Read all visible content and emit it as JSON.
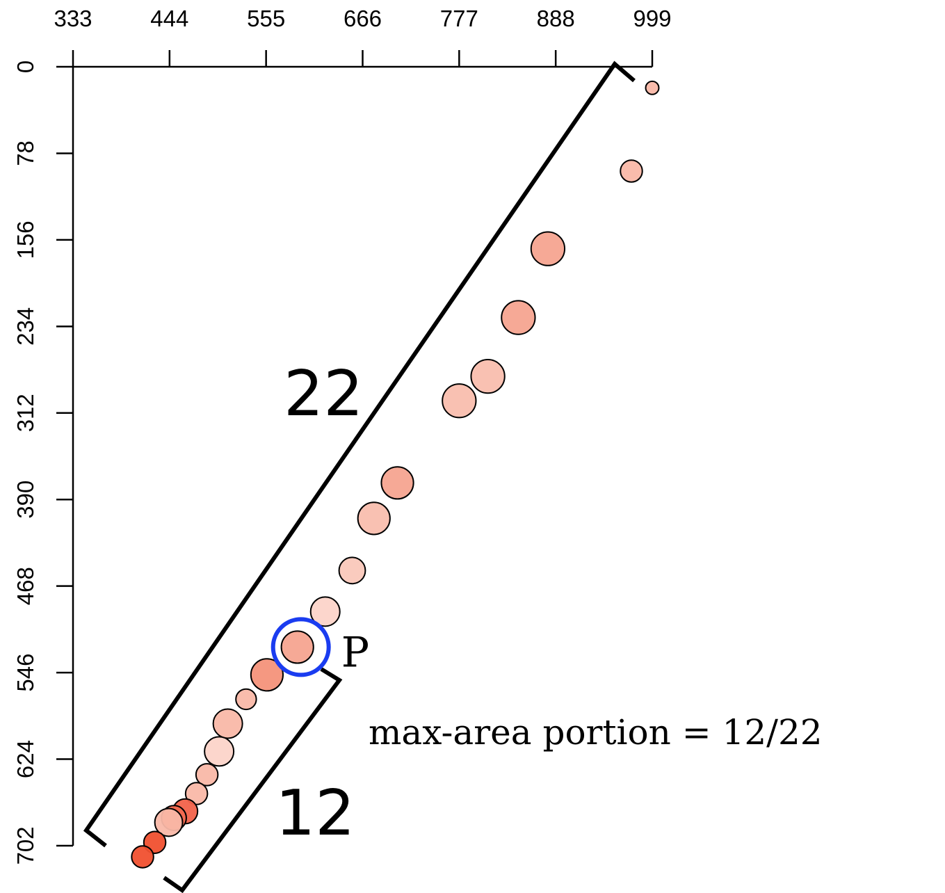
{
  "chart_data": {
    "type": "scatter",
    "title": "",
    "xlabel": "",
    "ylabel": "",
    "x_axis_position": "top",
    "y_axis_reversed": true,
    "xlim": [
      333,
      999
    ],
    "ylim": [
      0,
      702
    ],
    "x_ticks": [
      "333",
      "444",
      "555",
      "666",
      "777",
      "888",
      "999"
    ],
    "y_ticks": [
      "0",
      "78",
      "156",
      "234",
      "312",
      "390",
      "468",
      "546",
      "624",
      "702"
    ],
    "grid": false,
    "marker_stroke": "#000000",
    "points": [
      {
        "x": 999,
        "y": 19,
        "size": 0.45,
        "color": "#f9b8a8"
      },
      {
        "x": 975,
        "y": 94,
        "size": 0.75,
        "color": "#f9b8a8"
      },
      {
        "x": 879,
        "y": 164,
        "size": 1.15,
        "color": "#f5a490"
      },
      {
        "x": 845,
        "y": 226,
        "size": 1.15,
        "color": "#f5a490"
      },
      {
        "x": 810,
        "y": 279,
        "size": 1.15,
        "color": "#f9beae"
      },
      {
        "x": 777,
        "y": 301,
        "size": 1.15,
        "color": "#f9beae"
      },
      {
        "x": 706,
        "y": 375,
        "size": 1.1,
        "color": "#f5a490"
      },
      {
        "x": 679,
        "y": 407,
        "size": 1.1,
        "color": "#f9beae"
      },
      {
        "x": 654,
        "y": 454,
        "size": 0.9,
        "color": "#fac8ba"
      },
      {
        "x": 623,
        "y": 491,
        "size": 1.0,
        "color": "#fcd4c9"
      },
      {
        "x": 591,
        "y": 523,
        "size": 1.1,
        "color": "#f5a490"
      },
      {
        "x": 556,
        "y": 548,
        "size": 1.1,
        "color": "#f4927a"
      },
      {
        "x": 532,
        "y": 570,
        "size": 0.7,
        "color": "#f9b8a8"
      },
      {
        "x": 511,
        "y": 592,
        "size": 1.0,
        "color": "#f9b8a8"
      },
      {
        "x": 501,
        "y": 617,
        "size": 1.0,
        "color": "#fcd4c9"
      },
      {
        "x": 487,
        "y": 638,
        "size": 0.75,
        "color": "#f9b8a8"
      },
      {
        "x": 475,
        "y": 655,
        "size": 0.75,
        "color": "#f9b8a8"
      },
      {
        "x": 462,
        "y": 671,
        "size": 0.85,
        "color": "#f2624a"
      },
      {
        "x": 449,
        "y": 677,
        "size": 0.85,
        "color": "#f26a50"
      },
      {
        "x": 443,
        "y": 681,
        "size": 0.95,
        "color": "#f9b8a8"
      },
      {
        "x": 427,
        "y": 699,
        "size": 0.75,
        "color": "#f0502f"
      },
      {
        "x": 413,
        "y": 712,
        "size": 0.75,
        "color": "#f0502f"
      }
    ],
    "highlight": {
      "x": 595,
      "y": 523,
      "label": "P",
      "color": "#1a3cf0"
    },
    "annotations": {
      "outer_count": "22",
      "inner_count": "12",
      "portion_text": "max-area portion = 12/22"
    }
  }
}
